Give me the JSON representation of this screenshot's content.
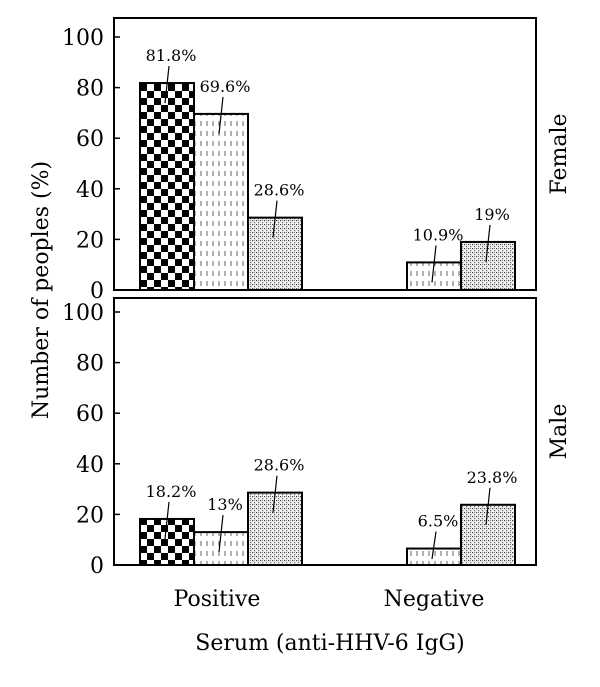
{
  "chart_data": {
    "type": "bar",
    "xlabel": "Serum (anti-HHV-6 IgG)",
    "ylabel": "Number of peoples (%)",
    "categories": [
      "Positive",
      "Negative"
    ],
    "ylim": [
      0,
      100
    ],
    "yticks": [
      0,
      20,
      40,
      60,
      80,
      100
    ],
    "grid": false,
    "panels": [
      {
        "name": "Female",
        "series": [
          {
            "values": [
              81.8,
              null
            ],
            "labels": [
              "81.8%",
              ""
            ]
          },
          {
            "values": [
              69.6,
              10.9
            ],
            "labels": [
              "69.6%",
              "10.9%"
            ]
          },
          {
            "values": [
              28.6,
              19
            ],
            "labels": [
              "28.6%",
              "19%"
            ]
          }
        ]
      },
      {
        "name": "Male",
        "series": [
          {
            "values": [
              18.2,
              null
            ],
            "labels": [
              "18.2%",
              ""
            ]
          },
          {
            "values": [
              13,
              6.5
            ],
            "labels": [
              "13%",
              "6.5%"
            ]
          },
          {
            "values": [
              28.6,
              23.8
            ],
            "labels": [
              "28.6%",
              "23.8%"
            ]
          }
        ]
      }
    ]
  }
}
